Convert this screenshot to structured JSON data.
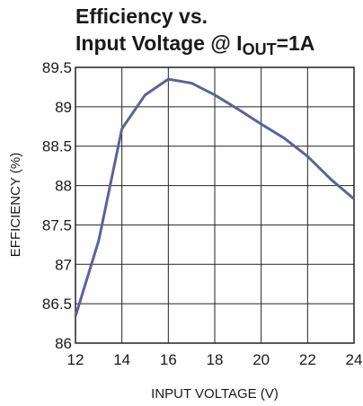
{
  "chart_data": {
    "type": "line",
    "title": {
      "line1": "Efficiency vs.",
      "line2": [
        "Input Voltage @ I",
        "OUT",
        "=1A"
      ]
    },
    "x_label": "INPUT VOLTAGE (V)",
    "y_label": "EFFICIENCY (%)",
    "x": [
      12,
      13,
      14,
      15,
      16,
      17,
      18,
      19,
      20,
      21,
      22,
      23,
      24
    ],
    "series": [
      {
        "name": "Efficiency",
        "color": "#5b6399",
        "values": [
          86.34,
          87.3,
          88.72,
          89.15,
          89.35,
          89.3,
          89.15,
          88.97,
          88.78,
          88.6,
          88.37,
          88.08,
          87.83
        ]
      }
    ],
    "xlim": [
      12,
      24
    ],
    "xticks": [
      12,
      14,
      16,
      18,
      20,
      22,
      24
    ],
    "ylim": [
      86,
      89.5
    ],
    "yticks": [
      86,
      86.5,
      87,
      87.5,
      88,
      88.5,
      89,
      89.5
    ],
    "grid": true
  }
}
